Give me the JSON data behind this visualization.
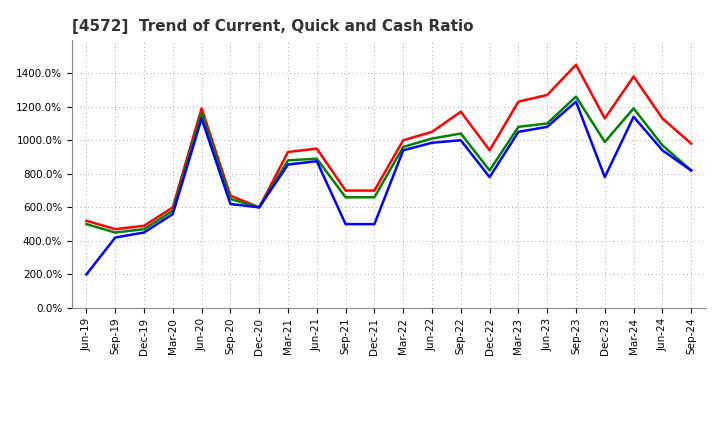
{
  "title": "[4572]  Trend of Current, Quick and Cash Ratio",
  "labels": [
    "Jun-19",
    "Sep-19",
    "Dec-19",
    "Mar-20",
    "Jun-20",
    "Sep-20",
    "Dec-20",
    "Mar-21",
    "Jun-21",
    "Sep-21",
    "Dec-21",
    "Mar-22",
    "Jun-22",
    "Sep-22",
    "Dec-22",
    "Mar-23",
    "Jun-23",
    "Sep-23",
    "Dec-23",
    "Mar-24",
    "Jun-24",
    "Sep-24"
  ],
  "current_ratio": [
    520,
    470,
    490,
    600,
    1190,
    670,
    600,
    930,
    950,
    700,
    700,
    1000,
    1050,
    1170,
    940,
    1230,
    1270,
    1450,
    1130,
    1380,
    1130,
    980
  ],
  "quick_ratio": [
    500,
    450,
    470,
    580,
    1160,
    650,
    600,
    880,
    890,
    660,
    660,
    960,
    1010,
    1040,
    820,
    1080,
    1100,
    1260,
    990,
    1190,
    970,
    820
  ],
  "cash_ratio": [
    200,
    420,
    450,
    560,
    1130,
    620,
    600,
    855,
    875,
    500,
    500,
    940,
    985,
    1000,
    780,
    1050,
    1080,
    1230,
    780,
    1140,
    940,
    820
  ],
  "current_color": "#ff0000",
  "quick_color": "#008000",
  "cash_color": "#0000ff",
  "background_color": "#ffffff",
  "grid_color": "#aaaaaa",
  "ylim_min": 0,
  "ylim_max": 1600,
  "ytick_values": [
    0,
    200,
    400,
    600,
    800,
    1000,
    1200,
    1400
  ],
  "line_width": 1.8,
  "title_fontsize": 11,
  "legend_fontsize": 9,
  "tick_fontsize": 7.5
}
